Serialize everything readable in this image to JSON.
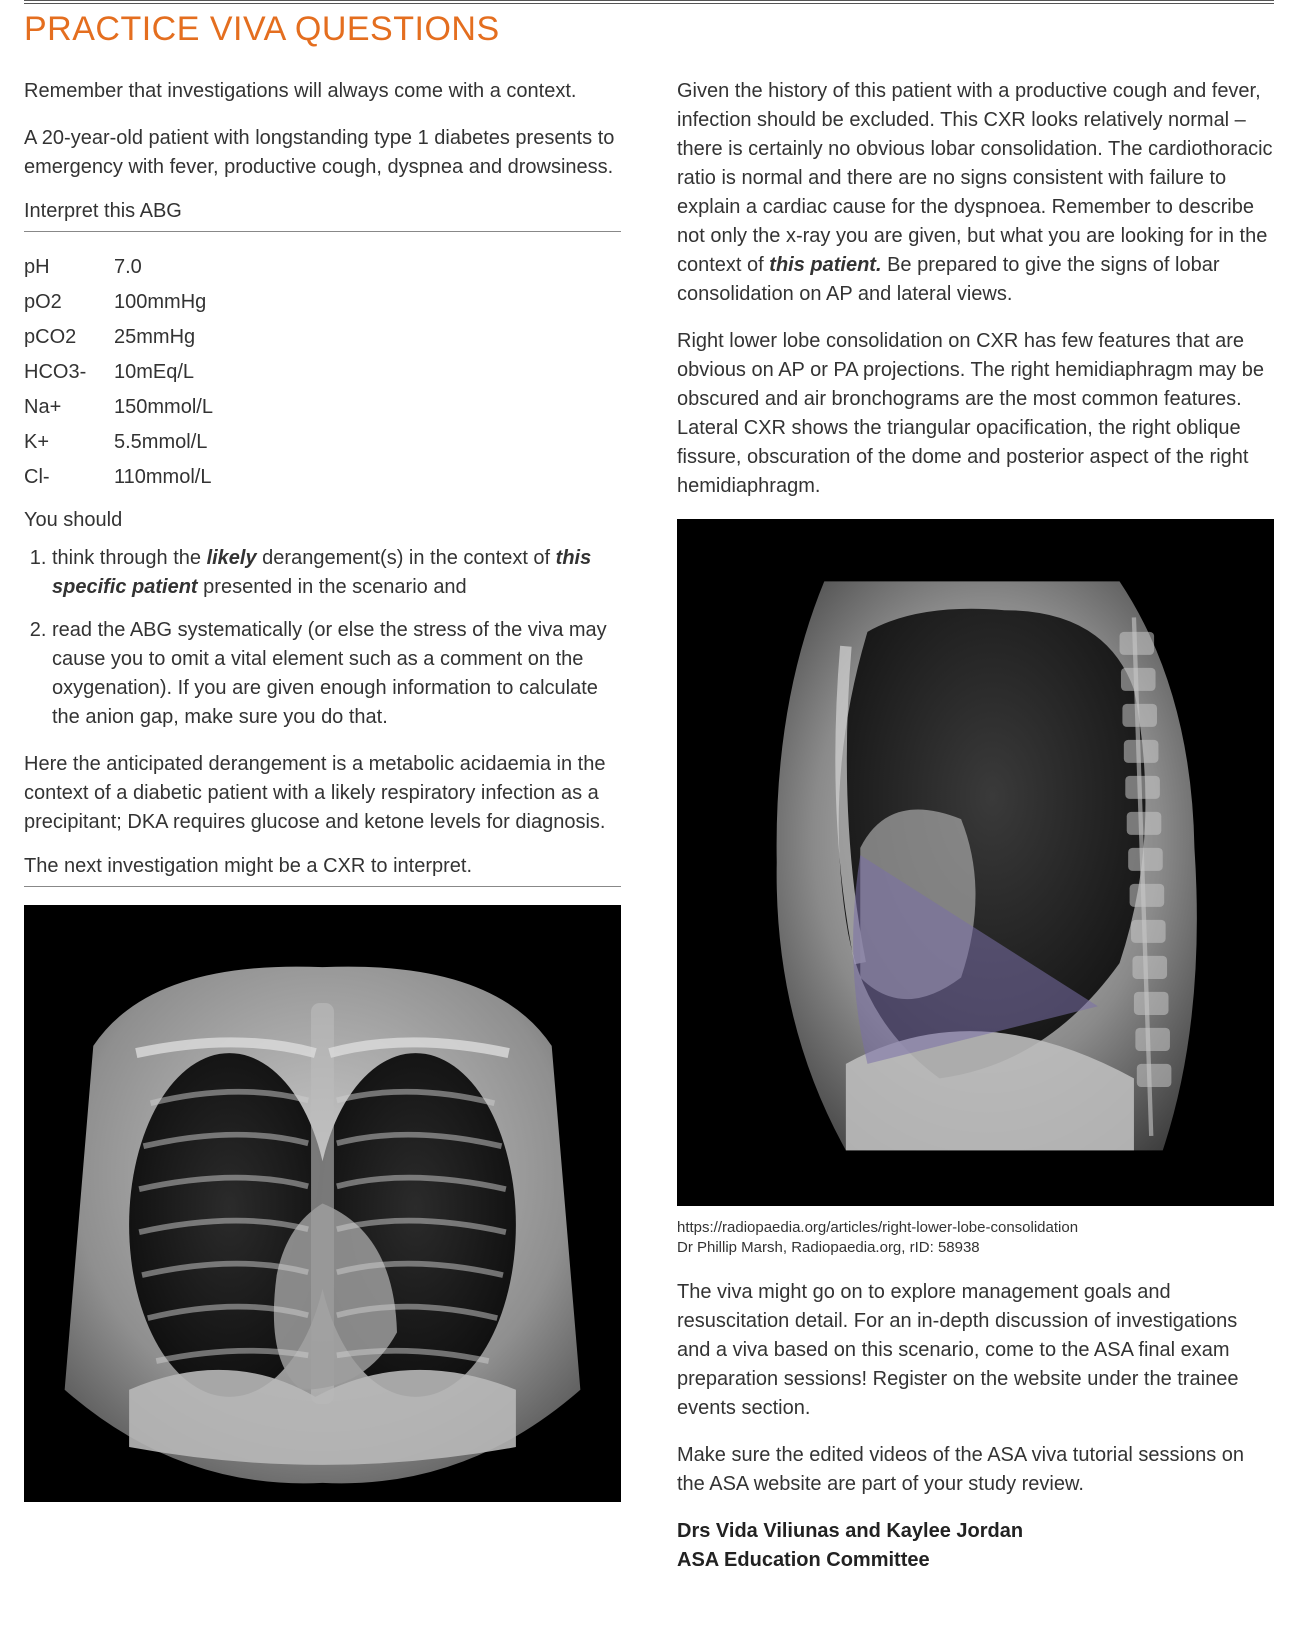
{
  "title": "PRACTICE VIVA QUESTIONS",
  "title_color": "#e46e1f",
  "left": {
    "intro1": "Remember that investigations will always come with a context.",
    "intro2": "A 20-year-old patient with longstanding type 1 diabetes presents to emergency with fever, productive cough, dyspnea and drowsiness.",
    "abg_label": "Interpret this ABG",
    "abg_rows": [
      {
        "label": "pH",
        "value": "7.0"
      },
      {
        "label": "pO2",
        "value": "100mmHg"
      },
      {
        "label": "pCO2",
        "value": "25mmHg"
      },
      {
        "label": "HCO3-",
        "value": "10mEq/L"
      },
      {
        "label": "Na+",
        "value": "150mmol/L"
      },
      {
        "label": "K+",
        "value": "5.5mmol/L"
      },
      {
        "label": "Cl-",
        "value": "110mmol/L"
      }
    ],
    "you_should": "You should",
    "step1_a": "think through the ",
    "step1_em": "likely",
    "step1_b": " derangement(s) in the context of ",
    "step1_em2": "this specific patient",
    "step1_c": " presented in the scenario and",
    "step2": "read the ABG systematically (or else the stress of the viva may cause you to omit a vital element such as a comment on the oxygenation). If you are given enough information to calculate the anion gap, make sure you do that.",
    "para_after": "Here the anticipated derangement is a metabolic acidaemia in the context of a diabetic patient with a likely respiratory infection as a precipitant; DKA requires glucose and ketone levels for diagnosis.",
    "next_label": "The next investigation might be a CXR to interpret."
  },
  "right": {
    "p1_a": "Given the history of this patient with a productive cough and fever, infection should be excluded. This CXR looks relatively normal – there is certainly no obvious lobar consolidation. The cardiothoracic ratio is normal and there are no signs consistent with failure to explain a cardiac cause for the dyspnoea. Remember to describe not only the x-ray you are given, but what you are looking for in the context of ",
    "p1_em": "this patient.",
    "p1_b": " Be prepared to give the signs of lobar consolidation on AP and lateral views.",
    "p2": "Right lower lobe consolidation on CXR has few features that are obvious on AP or PA projections. The right hemidiaphragm may be obscured and air bronchograms are the most common features. Lateral CXR shows the triangular opacification, the right oblique fissure, obscuration of the dome and posterior aspect of the right hemidiaphragm.",
    "caption1": "https://radiopaedia.org/articles/right-lower-lobe-consolidation",
    "caption2": "Dr Phillip Marsh, Radiopaedia.org, rID: 58938",
    "p3": "The viva might go on to explore management goals and resuscitation detail. For an in-depth discussion of investigations and a viva based on this scenario, come to the ASA final exam preparation sessions! Register on the website under the trainee events section.",
    "p4": "Make sure the edited videos of the ASA viva tutorial sessions on the ASA website are part of your study review.",
    "author1": "Drs Vida Viliunas and Kaylee Jordan",
    "author2": "ASA Education Committee"
  },
  "xray": {
    "overlay_color": "#7a6fa8",
    "overlay_opacity": 0.55
  }
}
